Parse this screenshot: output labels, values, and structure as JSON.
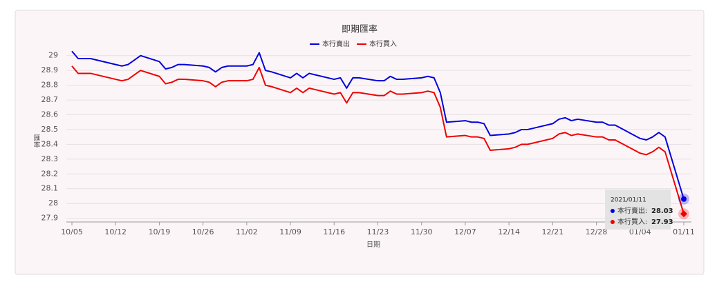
{
  "chart_data": {
    "type": "line",
    "title": "即期匯率",
    "x_label": "日期",
    "y_label": "匯率",
    "x": [
      "10/05",
      "10/06",
      "10/07",
      "10/08",
      "10/12",
      "10/13",
      "10/14",
      "10/15",
      "10/16",
      "10/19",
      "10/20",
      "10/21",
      "10/22",
      "10/23",
      "10/26",
      "10/27",
      "10/28",
      "10/29",
      "10/30",
      "11/02",
      "11/03",
      "11/04",
      "11/05",
      "11/06",
      "11/09",
      "11/10",
      "11/11",
      "11/12",
      "11/13",
      "11/16",
      "11/17",
      "11/18",
      "11/19",
      "11/20",
      "11/23",
      "11/24",
      "11/25",
      "11/26",
      "11/27",
      "11/30",
      "12/01",
      "12/02",
      "12/03",
      "12/04",
      "12/07",
      "12/08",
      "12/09",
      "12/10",
      "12/11",
      "12/14",
      "12/15",
      "12/16",
      "12/17",
      "12/18",
      "12/21",
      "12/22",
      "12/23",
      "12/24",
      "12/25",
      "12/28",
      "12/29",
      "12/30",
      "12/31",
      "01/04",
      "01/05",
      "01/06",
      "01/07",
      "01/08",
      "01/11"
    ],
    "series": [
      {
        "name": "本行賣出",
        "color": "#0000dd",
        "values": [
          29.03,
          28.98,
          28.98,
          28.98,
          28.94,
          28.93,
          28.94,
          28.97,
          29.0,
          28.96,
          28.91,
          28.92,
          28.94,
          28.94,
          28.93,
          28.92,
          28.89,
          28.92,
          28.93,
          28.93,
          28.94,
          29.02,
          28.9,
          28.89,
          28.85,
          28.88,
          28.85,
          28.88,
          28.87,
          28.84,
          28.85,
          28.78,
          28.85,
          28.85,
          28.83,
          28.83,
          28.86,
          28.84,
          28.84,
          28.85,
          28.86,
          28.85,
          28.75,
          28.55,
          28.56,
          28.55,
          28.55,
          28.54,
          28.46,
          28.47,
          28.48,
          28.5,
          28.5,
          28.51,
          28.54,
          28.57,
          28.58,
          28.56,
          28.57,
          28.55,
          28.55,
          28.53,
          28.53,
          28.44,
          28.43,
          28.45,
          28.48,
          28.45,
          28.03
        ]
      },
      {
        "name": "本行買入",
        "color": "#ee0000",
        "values": [
          28.93,
          28.88,
          28.88,
          28.88,
          28.84,
          28.83,
          28.84,
          28.87,
          28.9,
          28.86,
          28.81,
          28.82,
          28.84,
          28.84,
          28.83,
          28.82,
          28.79,
          28.82,
          28.83,
          28.83,
          28.84,
          28.92,
          28.8,
          28.79,
          28.75,
          28.78,
          28.75,
          28.78,
          28.77,
          28.74,
          28.75,
          28.68,
          28.75,
          28.75,
          28.73,
          28.73,
          28.76,
          28.74,
          28.74,
          28.75,
          28.76,
          28.75,
          28.65,
          28.45,
          28.46,
          28.45,
          28.45,
          28.44,
          28.36,
          28.37,
          28.38,
          28.4,
          28.4,
          28.41,
          28.44,
          28.47,
          28.48,
          28.46,
          28.47,
          28.45,
          28.45,
          28.43,
          28.43,
          28.34,
          28.33,
          28.35,
          28.38,
          28.35,
          27.93
        ]
      }
    ],
    "xticks": [
      "10/05",
      "10/12",
      "10/19",
      "10/26",
      "11/02",
      "11/09",
      "11/16",
      "11/23",
      "11/30",
      "12/07",
      "12/14",
      "12/21",
      "12/28",
      "01/04",
      "01/11"
    ],
    "ylim": [
      27.875,
      29.05
    ],
    "yticks": [
      27.9,
      28,
      28.1,
      28.2,
      28.3,
      28.4,
      28.5,
      28.6,
      28.7,
      28.8,
      28.9,
      29
    ],
    "grid": true,
    "tooltip": {
      "title": "2021/01/11",
      "labels": [
        "本行賣出:",
        "本行買入:"
      ]
    }
  }
}
